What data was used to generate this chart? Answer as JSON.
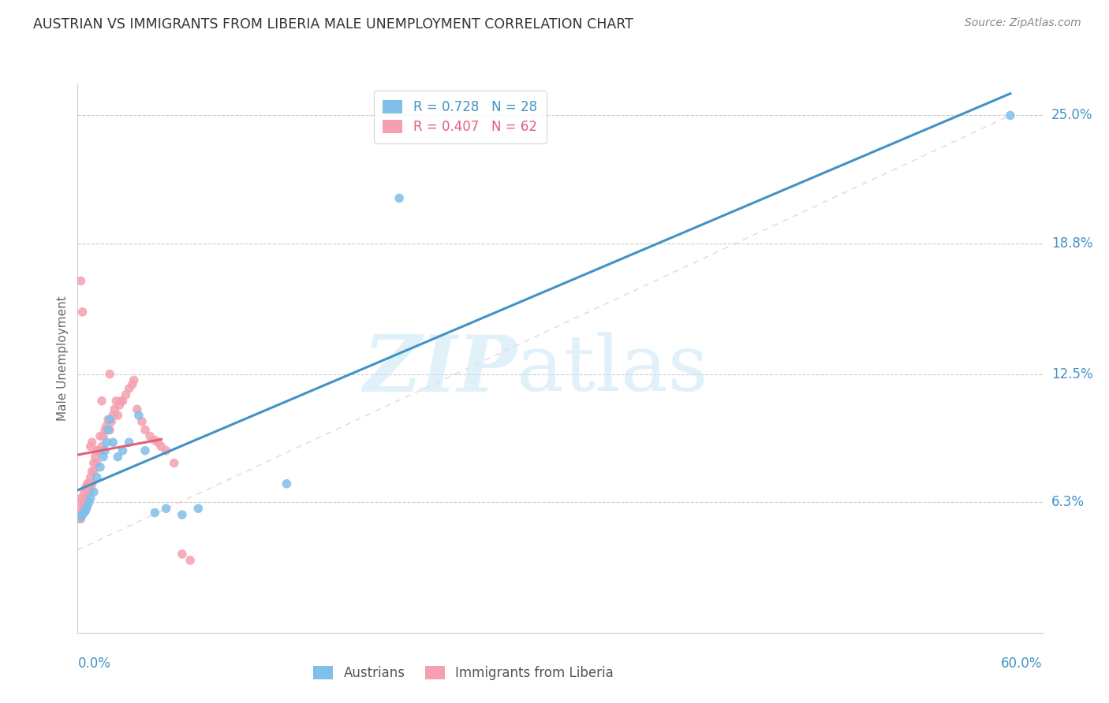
{
  "title": "AUSTRIAN VS IMMIGRANTS FROM LIBERIA MALE UNEMPLOYMENT CORRELATION CHART",
  "source": "Source: ZipAtlas.com",
  "ylabel": "Male Unemployment",
  "color_austrians": "#7fbfea",
  "color_liberia": "#f4a0b0",
  "color_line_blue": "#4292c6",
  "color_line_pink": "#e0607a",
  "xmin": 0.0,
  "xmax": 0.6,
  "ymin": 0.0,
  "ymax": 0.265,
  "ytick_values": [
    0.063,
    0.125,
    0.188,
    0.25
  ],
  "ytick_labels": [
    "6.3%",
    "12.5%",
    "18.8%",
    "25.0%"
  ],
  "xtick_left": "0.0%",
  "xtick_right": "60.0%",
  "legend1_blue": "R = 0.728   N = 28",
  "legend1_pink": "R = 0.407   N = 62",
  "legend2_blue": "Austrians",
  "legend2_pink": "Immigrants from Liberia",
  "austrians_x": [
    0.002,
    0.003,
    0.004,
    0.005,
    0.006,
    0.007,
    0.008,
    0.01,
    0.012,
    0.014,
    0.016,
    0.017,
    0.018,
    0.019,
    0.02,
    0.022,
    0.025,
    0.028,
    0.032,
    0.038,
    0.042,
    0.048,
    0.055,
    0.065,
    0.075,
    0.13,
    0.2,
    0.58
  ],
  "austrians_y": [
    0.056,
    0.057,
    0.058,
    0.059,
    0.061,
    0.063,
    0.065,
    0.068,
    0.075,
    0.08,
    0.085,
    0.088,
    0.092,
    0.098,
    0.103,
    0.092,
    0.085,
    0.088,
    0.092,
    0.105,
    0.088,
    0.058,
    0.06,
    0.057,
    0.06,
    0.072,
    0.21,
    0.25
  ],
  "liberia_x": [
    0.001,
    0.001,
    0.002,
    0.002,
    0.002,
    0.003,
    0.003,
    0.003,
    0.004,
    0.004,
    0.005,
    0.005,
    0.005,
    0.006,
    0.006,
    0.006,
    0.007,
    0.007,
    0.008,
    0.008,
    0.008,
    0.009,
    0.009,
    0.009,
    0.01,
    0.01,
    0.011,
    0.012,
    0.012,
    0.013,
    0.014,
    0.015,
    0.015,
    0.016,
    0.017,
    0.018,
    0.019,
    0.02,
    0.02,
    0.021,
    0.022,
    0.023,
    0.024,
    0.025,
    0.026,
    0.027,
    0.028,
    0.03,
    0.032,
    0.034,
    0.035,
    0.037,
    0.04,
    0.042,
    0.045,
    0.048,
    0.05,
    0.052,
    0.055,
    0.06,
    0.065,
    0.07
  ],
  "liberia_y": [
    0.055,
    0.06,
    0.055,
    0.065,
    0.17,
    0.058,
    0.063,
    0.155,
    0.062,
    0.068,
    0.06,
    0.065,
    0.07,
    0.063,
    0.068,
    0.072,
    0.068,
    0.072,
    0.07,
    0.075,
    0.09,
    0.072,
    0.078,
    0.092,
    0.078,
    0.082,
    0.085,
    0.082,
    0.088,
    0.088,
    0.095,
    0.09,
    0.112,
    0.095,
    0.098,
    0.1,
    0.103,
    0.098,
    0.125,
    0.102,
    0.105,
    0.108,
    0.112,
    0.105,
    0.11,
    0.112,
    0.112,
    0.115,
    0.118,
    0.12,
    0.122,
    0.108,
    0.102,
    0.098,
    0.095,
    0.093,
    0.092,
    0.09,
    0.088,
    0.082,
    0.038,
    0.035
  ]
}
